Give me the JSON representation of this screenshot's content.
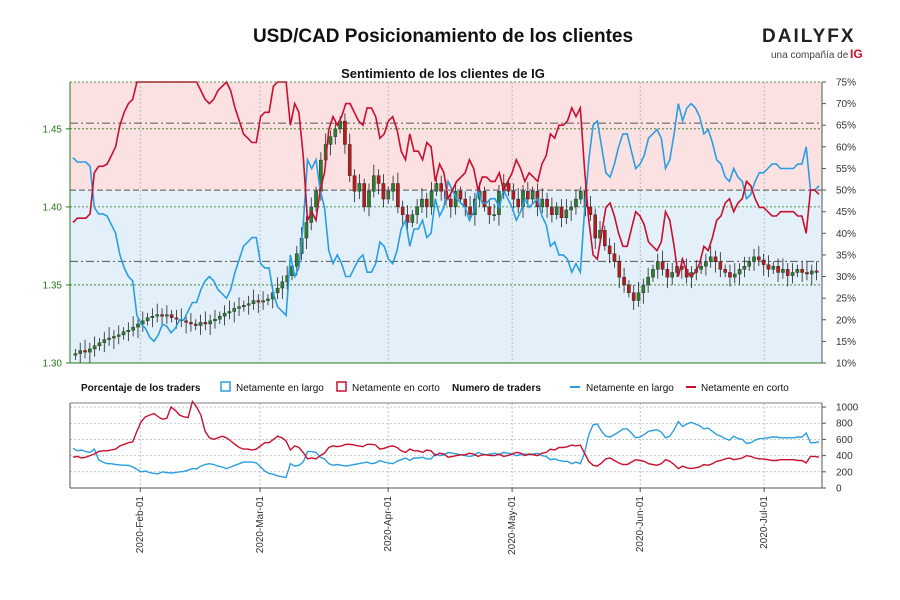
{
  "title": "USD/CAD Posicionamiento de los clientes",
  "brand": {
    "logo_text": "DAILYFX",
    "tagline": "una compañía de",
    "ig": "IG"
  },
  "colors": {
    "long": "#2a9ee0",
    "short": "#c8102e",
    "candle_up": "#2e7d32",
    "candle_down": "#b71c1c",
    "bg_top": "#fbe1e2",
    "bg_bottom": "#e3f0fa",
    "price_axis": "#2a7a1a"
  },
  "chart_data": [
    {
      "type": "candlestick+line",
      "title": "Sentimiento de los clientes de IG",
      "xlabel": "",
      "ylabel": "",
      "x_ticks": [
        "2020-Feb-01",
        "2020-Mar-01",
        "2020-Apr-01",
        "2020-May-01",
        "2020-Jun-01",
        "2020-Jul-01"
      ],
      "x_range": [
        "2020-01-15",
        "2020-07-15"
      ],
      "price_axis": {
        "side": "left",
        "ticks": [
          "1.30",
          "1.35",
          "1.40",
          "1.45"
        ],
        "range": [
          1.3,
          1.48
        ]
      },
      "percent_axis": {
        "side": "right",
        "ticks": [
          "10%",
          "15%",
          "20%",
          "25%",
          "30%",
          "35%",
          "40%",
          "45%",
          "50%",
          "55%",
          "60%",
          "65%",
          "70%",
          "75%"
        ],
        "range": [
          10,
          75
        ]
      },
      "reference_lines": [
        {
          "axis": "percent",
          "value": 50,
          "style": "dashed"
        },
        {
          "axis": "percent",
          "value": 65.5,
          "style": "dash-dot"
        },
        {
          "axis": "percent",
          "value": 33.5,
          "style": "dash-dot"
        }
      ],
      "series": [
        {
          "name": "Netamente en largo",
          "axis": "percent",
          "values": [
            57.5,
            56.5,
            56.5,
            56.5,
            55.5,
            46,
            44.5,
            44.5,
            44,
            42,
            40,
            35,
            32,
            30,
            29,
            21,
            19,
            18,
            16,
            15,
            16.5,
            19,
            18.5,
            17,
            18,
            20,
            20,
            22,
            24,
            24,
            27,
            29,
            30,
            29,
            27,
            26,
            25,
            27,
            31,
            34,
            37,
            38,
            39,
            39,
            33,
            32,
            32,
            26,
            23,
            22,
            21,
            35,
            30,
            32,
            42,
            57,
            55,
            57,
            50,
            46,
            36,
            33,
            35,
            33,
            30,
            30,
            32,
            34,
            35,
            31,
            31,
            33,
            38,
            37,
            34,
            33,
            36,
            41,
            43,
            37,
            41,
            41,
            43,
            39,
            40,
            48,
            44,
            46,
            52,
            50,
            48,
            47,
            46,
            43,
            45,
            50,
            47,
            47,
            48,
            48,
            46,
            50,
            48,
            46,
            43,
            45,
            48,
            46,
            47,
            48,
            44,
            42,
            37,
            38,
            35,
            35,
            34,
            31,
            33,
            31,
            45,
            57,
            65,
            66,
            60,
            54,
            53,
            56,
            60,
            63,
            63,
            59,
            55,
            56,
            58,
            62,
            63,
            64,
            62,
            55,
            57,
            63,
            70,
            66,
            69,
            70,
            69,
            67,
            63,
            64,
            61,
            57,
            56,
            53,
            52,
            55,
            53,
            52,
            48,
            49,
            52,
            54,
            54,
            55,
            56,
            56,
            55,
            55,
            55,
            55,
            56,
            56,
            60,
            50,
            50,
            51
          ],
          "color": "#2a9ee0"
        },
        {
          "name": "Netamente en corto",
          "axis": "percent",
          "values": [
            42.5,
            43.5,
            43.5,
            43.5,
            44.5,
            54,
            55.5,
            55.5,
            56,
            58,
            60,
            65,
            68,
            70,
            71,
            79,
            81,
            82,
            84,
            85,
            83.5,
            81,
            81.5,
            83,
            82,
            80,
            80,
            78,
            76,
            76,
            73,
            71,
            70,
            71,
            73,
            74,
            75,
            73,
            69,
            66,
            63,
            62,
            61,
            61,
            67,
            68,
            68,
            74,
            77,
            78,
            79,
            65,
            70,
            68,
            58,
            43,
            45,
            43,
            50,
            54,
            64,
            67,
            65,
            67,
            70,
            70,
            68,
            66,
            65,
            69,
            69,
            67,
            62,
            63,
            66,
            67,
            64,
            59,
            57,
            63,
            59,
            59,
            57,
            61,
            60,
            52,
            56,
            54,
            48,
            50,
            52,
            53,
            54,
            57,
            55,
            50,
            53,
            53,
            52,
            52,
            54,
            50,
            52,
            54,
            57,
            55,
            52,
            54,
            53,
            52,
            56,
            58,
            63,
            62,
            65,
            65,
            66,
            69,
            67,
            69,
            55,
            43,
            35,
            34,
            40,
            46,
            47,
            44,
            40,
            37,
            37,
            41,
            45,
            44,
            42,
            38,
            37,
            36,
            38,
            45,
            43,
            37,
            30,
            34,
            31,
            30,
            31,
            33,
            37,
            36,
            39,
            43,
            44,
            47,
            48,
            45,
            47,
            48,
            52,
            51,
            48,
            46,
            46,
            45,
            44,
            44,
            45,
            45,
            45,
            45,
            44,
            44,
            40,
            50,
            50,
            49
          ],
          "color": "#c8102e"
        },
        {
          "name": "USD/CAD",
          "axis": "price",
          "kind": "candles",
          "values": [
            1.306,
            1.308,
            1.307,
            1.309,
            1.311,
            1.313,
            1.315,
            1.316,
            1.317,
            1.318,
            1.32,
            1.321,
            1.323,
            1.325,
            1.327,
            1.329,
            1.33,
            1.331,
            1.33,
            1.331,
            1.329,
            1.328,
            1.327,
            1.326,
            1.325,
            1.324,
            1.326,
            1.325,
            1.327,
            1.328,
            1.33,
            1.332,
            1.333,
            1.335,
            1.336,
            1.337,
            1.338,
            1.34,
            1.339,
            1.34,
            1.341,
            1.345,
            1.348,
            1.352,
            1.356,
            1.362,
            1.37,
            1.38,
            1.39,
            1.4,
            1.41,
            1.43,
            1.44,
            1.445,
            1.45,
            1.455,
            1.44,
            1.42,
            1.41,
            1.415,
            1.4,
            1.41,
            1.42,
            1.415,
            1.405,
            1.41,
            1.415,
            1.4,
            1.395,
            1.39,
            1.395,
            1.4,
            1.405,
            1.4,
            1.41,
            1.415,
            1.41,
            1.405,
            1.4,
            1.41,
            1.405,
            1.4,
            1.395,
            1.405,
            1.41,
            1.4,
            1.395,
            1.395,
            1.41,
            1.415,
            1.41,
            1.405,
            1.4,
            1.41,
            1.405,
            1.41,
            1.4,
            1.405,
            1.4,
            1.395,
            1.4,
            1.393,
            1.398,
            1.4,
            1.405,
            1.41,
            1.4,
            1.395,
            1.38,
            1.385,
            1.375,
            1.37,
            1.365,
            1.355,
            1.35,
            1.345,
            1.34,
            1.345,
            1.35,
            1.355,
            1.36,
            1.365,
            1.36,
            1.355,
            1.358,
            1.362,
            1.36,
            1.355,
            1.358,
            1.36,
            1.362,
            1.365,
            1.368,
            1.365,
            1.36,
            1.358,
            1.355,
            1.357,
            1.36,
            1.362,
            1.365,
            1.368,
            1.366,
            1.363,
            1.36,
            1.362,
            1.358,
            1.36,
            1.356,
            1.358,
            1.36,
            1.358,
            1.357,
            1.359,
            1.358
          ],
          "color": "#2e7d32"
        }
      ]
    },
    {
      "type": "line",
      "title": "Numero de traders",
      "xlabel": "",
      "ylabel": "",
      "y_axis": {
        "side": "right",
        "ticks": [
          "0",
          "200",
          "400",
          "600",
          "800",
          "1000"
        ],
        "range": [
          0,
          1050
        ]
      },
      "series": [
        {
          "name": "Netamente en largo",
          "values": [
            490,
            460,
            470,
            450,
            440,
            480,
            350,
            320,
            300,
            300,
            290,
            285,
            280,
            280,
            260,
            230,
            200,
            210,
            190,
            180,
            175,
            200,
            190,
            185,
            190,
            200,
            205,
            220,
            240,
            235,
            270,
            290,
            300,
            290,
            270,
            260,
            240,
            260,
            280,
            300,
            320,
            320,
            320,
            310,
            260,
            210,
            180,
            170,
            150,
            140,
            130,
            300,
            270,
            280,
            320,
            450,
            450,
            440,
            380,
            360,
            300,
            280,
            290,
            280,
            270,
            280,
            290,
            300,
            310,
            320,
            300,
            310,
            340,
            320,
            310,
            300,
            330,
            350,
            370,
            340,
            370,
            370,
            380,
            360,
            360,
            420,
            400,
            410,
            440,
            430,
            420,
            410,
            400,
            390,
            400,
            440,
            420,
            410,
            420,
            430,
            410,
            440,
            430,
            420,
            400,
            410,
            420,
            410,
            420,
            430,
            400,
            390,
            350,
            360,
            340,
            330,
            330,
            300,
            320,
            300,
            430,
            660,
            780,
            790,
            700,
            640,
            630,
            660,
            690,
            730,
            730,
            680,
            620,
            630,
            660,
            700,
            710,
            720,
            690,
            620,
            640,
            720,
            820,
            760,
            790,
            810,
            790,
            770,
            730,
            740,
            700,
            660,
            640,
            610,
            590,
            640,
            610,
            600,
            550,
            560,
            590,
            610,
            610,
            620,
            630,
            630,
            620,
            620,
            620,
            620,
            630,
            630,
            680,
            560,
            560,
            570
          ],
          "color": "#2a9ee0"
        },
        {
          "name": "Netamente en corto",
          "values": [
            380,
            390,
            370,
            380,
            400,
            420,
            450,
            460,
            460,
            470,
            480,
            520,
            540,
            560,
            570,
            700,
            820,
            880,
            900,
            920,
            880,
            850,
            860,
            1000,
            960,
            900,
            880,
            870,
            1100,
            1000,
            900,
            700,
            620,
            600,
            620,
            640,
            620,
            580,
            540,
            500,
            480,
            480,
            470,
            480,
            520,
            560,
            560,
            600,
            640,
            620,
            580,
            470,
            520,
            500,
            440,
            360,
            370,
            360,
            400,
            430,
            500,
            520,
            510,
            520,
            540,
            540,
            530,
            520,
            510,
            540,
            540,
            530,
            480,
            490,
            510,
            520,
            500,
            460,
            440,
            480,
            460,
            460,
            440,
            470,
            460,
            400,
            430,
            420,
            380,
            390,
            400,
            410,
            410,
            430,
            420,
            390,
            410,
            410,
            400,
            400,
            420,
            390,
            400,
            420,
            440,
            430,
            400,
            420,
            410,
            400,
            430,
            440,
            480,
            470,
            500,
            500,
            510,
            530,
            520,
            530,
            430,
            330,
            280,
            270,
            310,
            360,
            370,
            340,
            310,
            290,
            290,
            320,
            350,
            340,
            330,
            300,
            290,
            280,
            300,
            350,
            330,
            290,
            240,
            270,
            250,
            240,
            250,
            260,
            290,
            280,
            300,
            330,
            340,
            360,
            370,
            350,
            360,
            370,
            400,
            390,
            370,
            360,
            360,
            350,
            340,
            340,
            350,
            350,
            350,
            350,
            340,
            340,
            310,
            390,
            390,
            380
          ],
          "color": "#c8102e"
        }
      ]
    }
  ],
  "legend": {
    "pct_header": "Porcentaje de los traders",
    "traders_header": "Numero de traders",
    "long_label": "Netamente en largo",
    "short_label": "Netamente en corto"
  }
}
